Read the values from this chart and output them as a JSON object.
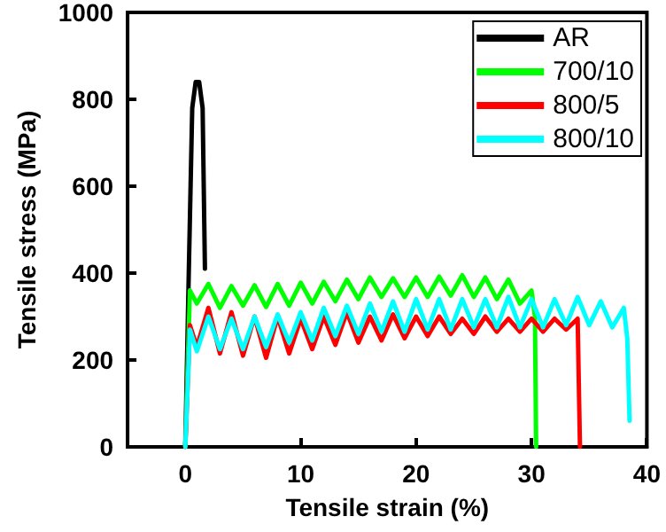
{
  "chart_data": {
    "type": "line",
    "xlabel": "Tensile strain (%)",
    "ylabel": "Tensile stress (MPa)",
    "xlim": [
      -5,
      40
    ],
    "xticks": [
      0,
      10,
      20,
      30,
      40
    ],
    "ylim": [
      0,
      1000
    ],
    "yticks": [
      0,
      200,
      400,
      600,
      800,
      1000
    ],
    "legend": "top right",
    "marker": "none",
    "line_style": "solid",
    "series": [
      {
        "name": "AR",
        "color": "#000000",
        "x": [
          0,
          0.3,
          0.6,
          0.9,
          1.2,
          1.5,
          1.7
        ],
        "values": [
          0,
          400,
          780,
          840,
          840,
          780,
          410
        ]
      },
      {
        "name": "700/10",
        "color": "#00ff00",
        "x": [
          0,
          0.4,
          1,
          2,
          3,
          4,
          5,
          6,
          7,
          8,
          9,
          10,
          11,
          12,
          13,
          14,
          15,
          16,
          17,
          18,
          19,
          20,
          21,
          22,
          23,
          24,
          25,
          26,
          27,
          28,
          29,
          30,
          30.3,
          30.4
        ],
        "values": [
          0,
          360,
          330,
          375,
          320,
          370,
          325,
          372,
          322,
          375,
          325,
          378,
          330,
          380,
          335,
          385,
          340,
          390,
          345,
          388,
          345,
          390,
          345,
          392,
          348,
          395,
          345,
          390,
          340,
          385,
          330,
          360,
          300,
          0
        ]
      },
      {
        "name": "800/5",
        "color": "#ff0000",
        "x": [
          0,
          0.4,
          1,
          2,
          3,
          4,
          5,
          6,
          7,
          8,
          9,
          10,
          11,
          12,
          13,
          14,
          15,
          16,
          17,
          18,
          19,
          20,
          21,
          22,
          23,
          24,
          25,
          26,
          27,
          28,
          29,
          30,
          31,
          32,
          33,
          34,
          34.2
        ],
        "values": [
          0,
          280,
          230,
          320,
          215,
          310,
          210,
          300,
          205,
          300,
          215,
          295,
          225,
          300,
          235,
          310,
          240,
          300,
          245,
          305,
          250,
          300,
          255,
          300,
          260,
          295,
          260,
          300,
          265,
          295,
          265,
          295,
          265,
          295,
          270,
          295,
          0
        ]
      },
      {
        "name": "800/10",
        "color": "#00ffff",
        "x": [
          0,
          0.4,
          1,
          2,
          3,
          4,
          5,
          6,
          7,
          8,
          9,
          10,
          11,
          12,
          13,
          14,
          15,
          16,
          17,
          18,
          19,
          20,
          21,
          22,
          23,
          24,
          25,
          26,
          27,
          28,
          29,
          30,
          31,
          32,
          33,
          34,
          35,
          36,
          37,
          38,
          38.3,
          38.5
        ],
        "values": [
          0,
          270,
          220,
          300,
          225,
          295,
          225,
          300,
          230,
          305,
          240,
          310,
          245,
          320,
          255,
          325,
          260,
          330,
          265,
          335,
          265,
          340,
          270,
          340,
          270,
          340,
          275,
          340,
          275,
          345,
          275,
          340,
          275,
          340,
          280,
          345,
          280,
          335,
          275,
          320,
          250,
          60
        ]
      }
    ]
  }
}
